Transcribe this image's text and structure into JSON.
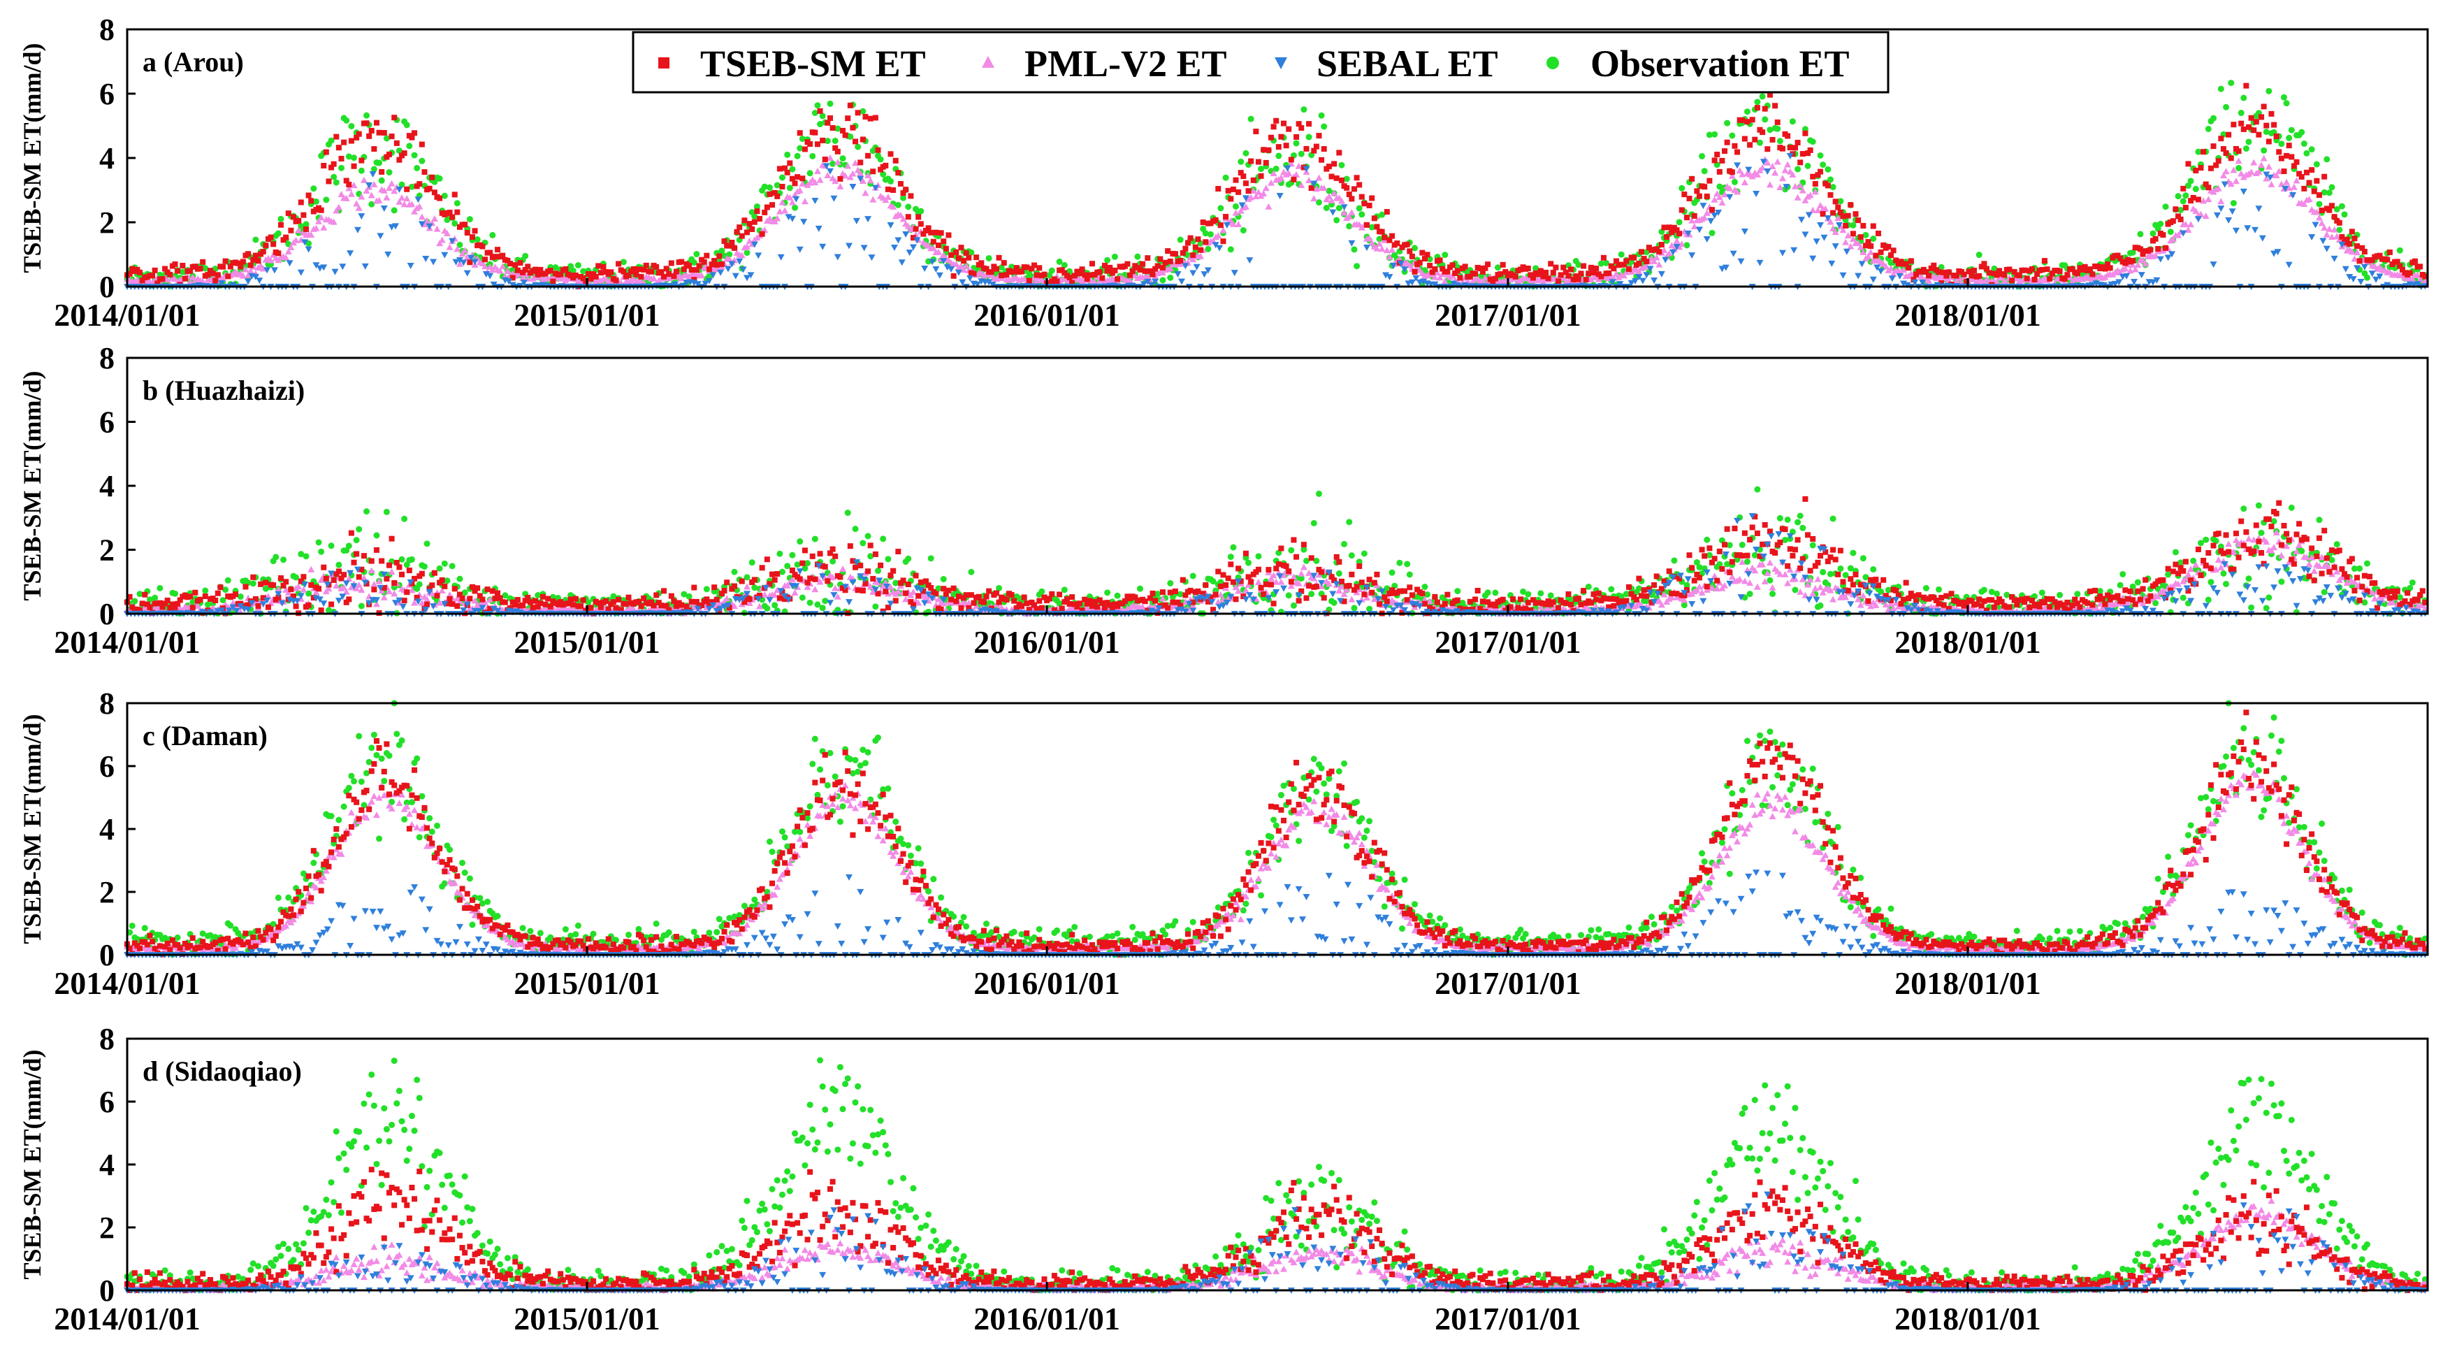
{
  "chart_data": {
    "type": "scatter",
    "description_series": [
      "TSEB-SM ET",
      "PML-V2 ET",
      "SEBAL ET",
      "Observation ET"
    ],
    "legend": [
      {
        "name": "TSEB-SM ET",
        "marker": "square",
        "color": "#e8141b"
      },
      {
        "name": "PML-V2 ET",
        "marker": "triangle-up",
        "color": "#f28ae6"
      },
      {
        "name": "SEBAL ET",
        "marker": "triangle-down",
        "color": "#2f7fdc"
      },
      {
        "name": "Observation ET",
        "marker": "circle",
        "color": "#22e028"
      }
    ],
    "x_ticks": [
      "2014/01/01",
      "2015/01/01",
      "2016/01/01",
      "2017/01/01",
      "2018/01/01"
    ],
    "x_tick_days": [
      0,
      365,
      730,
      1096,
      1461
    ],
    "xlim_days": [
      0,
      1826
    ],
    "ylabel": "TSEB-SM ET(mm/d)",
    "ylim": [
      0,
      8
    ],
    "y_ticks": [
      "0",
      "2",
      "4",
      "6",
      "8"
    ],
    "panels": [
      {
        "label": "a (Arou)",
        "seasonal_peaks_mm_per_day": {
          "TSEB-SM ET": [
            4.6,
            5.0,
            4.6,
            5.0,
            4.8
          ],
          "PML-V2 ET": [
            3.0,
            3.6,
            3.4,
            3.6,
            3.6
          ],
          "SEBAL ET": [
            2.6,
            2.8,
            2.8,
            3.2,
            2.8
          ],
          "Observation ET": [
            4.4,
            4.8,
            4.0,
            5.0,
            5.2
          ]
        },
        "peak_day_of_year": [
          196,
          200,
          196,
          205,
          228
        ],
        "season_halfwidth_days": 85,
        "winter_baseline_mm_per_day": {
          "TSEB-SM ET": 0.4,
          "PML-V2 ET": 0.2,
          "SEBAL ET": 0.0,
          "Observation ET": 0.3
        }
      },
      {
        "label": "b (Huazhaizi)",
        "seasonal_peaks_mm_per_day": {
          "TSEB-SM ET": [
            1.1,
            1.4,
            1.3,
            2.2,
            2.4
          ],
          "PML-V2 ET": [
            0.9,
            1.0,
            1.0,
            1.2,
            2.2
          ],
          "SEBAL ET": [
            1.0,
            1.2,
            1.2,
            2.4,
            1.4
          ],
          "Observation ET": [
            1.6,
            1.4,
            1.4,
            2.0,
            2.0
          ]
        },
        "peak_day_of_year": [
          185,
          200,
          200,
          205,
          235
        ],
        "season_halfwidth_days": 95,
        "winter_baseline_mm_per_day": {
          "TSEB-SM ET": 0.3,
          "PML-V2 ET": 0.1,
          "SEBAL ET": 0.0,
          "Observation ET": 0.3
        }
      },
      {
        "label": "c (Daman)",
        "seasonal_peaks_mm_per_day": {
          "TSEB-SM ET": [
            5.6,
            5.4,
            5.2,
            6.4,
            6.0
          ],
          "PML-V2 ET": [
            5.0,
            5.0,
            4.6,
            4.8,
            5.4
          ],
          "SEBAL ET": [
            1.8,
            1.8,
            2.2,
            2.2,
            1.6
          ],
          "Observation ET": [
            6.0,
            6.2,
            5.4,
            6.0,
            6.6
          ]
        },
        "peak_day_of_year": [
          205,
          205,
          215,
          210,
          225
        ],
        "season_halfwidth_days": 75,
        "winter_baseline_mm_per_day": {
          "TSEB-SM ET": 0.3,
          "PML-V2 ET": 0.2,
          "SEBAL ET": 0.0,
          "Observation ET": 0.4
        }
      },
      {
        "label": "d (Sidaoqiao)",
        "seasonal_peaks_mm_per_day": {
          "TSEB-SM ET": [
            2.8,
            2.6,
            2.4,
            2.6,
            2.2
          ],
          "PML-V2 ET": [
            0.9,
            1.3,
            1.2,
            1.2,
            2.4
          ],
          "SEBAL ET": [
            1.2,
            2.0,
            2.0,
            2.2,
            2.2
          ],
          "Observation ET": [
            5.6,
            5.6,
            2.6,
            5.2,
            5.4
          ]
        },
        "peak_day_of_year": [
          210,
          200,
          215,
          210,
          230
        ],
        "season_halfwidth_days": 80,
        "winter_baseline_mm_per_day": {
          "TSEB-SM ET": 0.2,
          "PML-V2 ET": 0.1,
          "SEBAL ET": 0.0,
          "Observation ET": 0.2
        }
      }
    ]
  }
}
